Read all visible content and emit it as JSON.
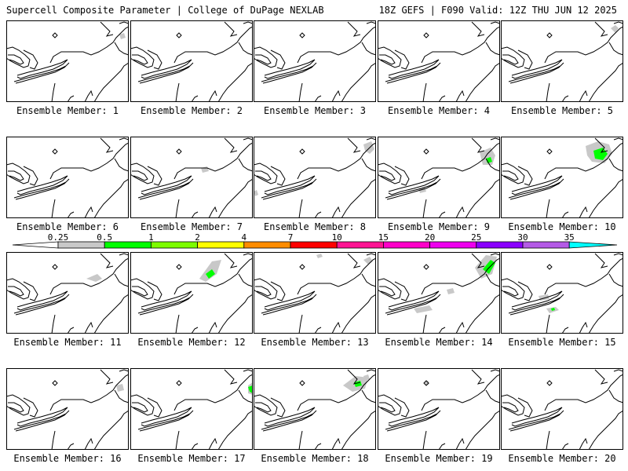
{
  "header": {
    "left": "Supercell Composite Parameter | College of DuPage NEXLAB",
    "right": "18Z GEFS | F090 Valid: 12Z THU JUN 12 2025"
  },
  "members": [
    {
      "caption": "Ensemble Member: 1",
      "blobs": []
    },
    {
      "caption": "Ensemble Member: 2",
      "blobs": []
    },
    {
      "caption": "Ensemble Member: 3",
      "blobs": []
    },
    {
      "caption": "Ensemble Member: 4",
      "blobs": []
    },
    {
      "caption": "Ensemble Member: 5",
      "blobs": []
    },
    {
      "caption": "Ensemble Member: 6",
      "blobs": []
    },
    {
      "caption": "Ensemble Member: 7",
      "blobs": []
    },
    {
      "caption": "Ensemble Member: 8",
      "blobs": []
    },
    {
      "caption": "Ensemble Member: 9",
      "blobs": []
    },
    {
      "caption": "Ensemble Member: 10",
      "blobs": []
    },
    {
      "caption": "Ensemble Member: 11",
      "blobs": []
    },
    {
      "caption": "Ensemble Member: 12",
      "blobs": []
    },
    {
      "caption": "Ensemble Member: 13",
      "blobs": []
    },
    {
      "caption": "Ensemble Member: 14",
      "blobs": []
    },
    {
      "caption": "Ensemble Member: 15",
      "blobs": []
    },
    {
      "caption": "Ensemble Member: 16",
      "blobs": []
    },
    {
      "caption": "Ensemble Member: 17",
      "blobs": []
    },
    {
      "caption": "Ensemble Member: 18",
      "blobs": []
    },
    {
      "caption": "Ensemble Member: 19",
      "blobs": []
    },
    {
      "caption": "Ensemble Member: 20",
      "blobs": []
    }
  ],
  "colorbar": {
    "labels": [
      "0.25",
      "0.5",
      "1",
      "2",
      "4",
      "7",
      "10",
      "15",
      "20",
      "25",
      "30",
      "35"
    ],
    "colors": [
      "#c8c8c8",
      "#00ff00",
      "#7cfc00",
      "#ffff00",
      "#ff8c00",
      "#ff0000",
      "#ff1493",
      "#ff00c8",
      "#ee00ee",
      "#8a00ff",
      "#b45ae6",
      "#00ffff"
    ]
  }
}
